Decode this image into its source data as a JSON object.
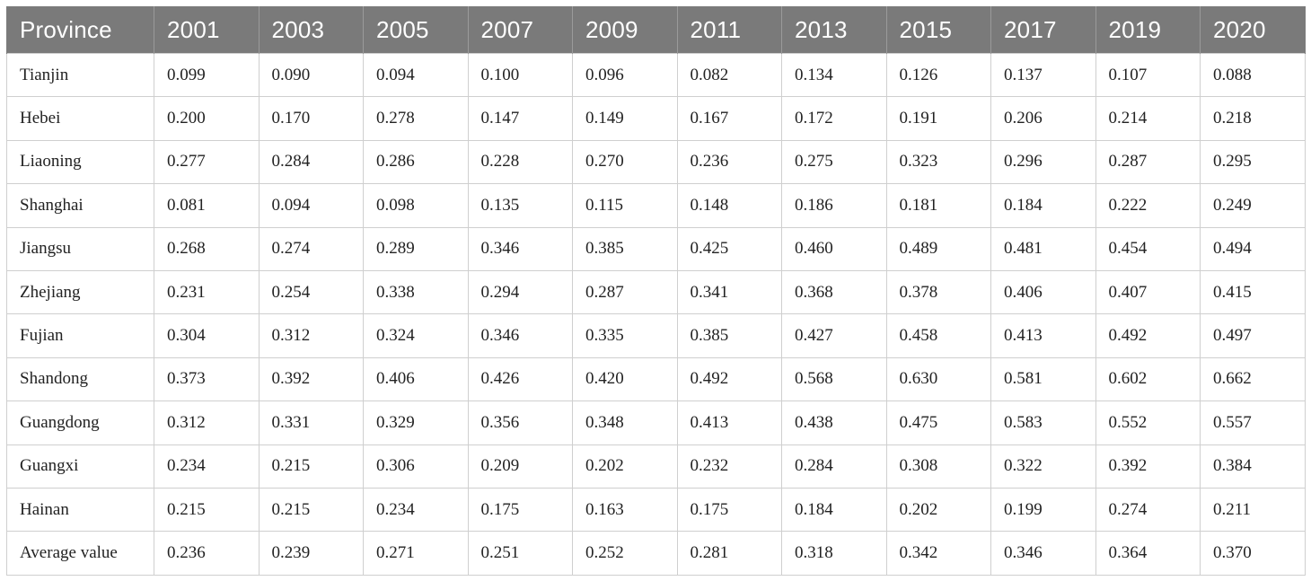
{
  "table": {
    "headers": [
      "Province",
      "2001",
      "2003",
      "2005",
      "2007",
      "2009",
      "2011",
      "2013",
      "2015",
      "2017",
      "2019",
      "2020"
    ],
    "rows": [
      [
        "Tianjin",
        "0.099",
        "0.090",
        "0.094",
        "0.100",
        "0.096",
        "0.082",
        "0.134",
        "0.126",
        "0.137",
        "0.107",
        "0.088"
      ],
      [
        "Hebei",
        "0.200",
        "0.170",
        "0.278",
        "0.147",
        "0.149",
        "0.167",
        "0.172",
        "0.191",
        "0.206",
        "0.214",
        "0.218"
      ],
      [
        "Liaoning",
        "0.277",
        "0.284",
        "0.286",
        "0.228",
        "0.270",
        "0.236",
        "0.275",
        "0.323",
        "0.296",
        "0.287",
        "0.295"
      ],
      [
        "Shanghai",
        "0.081",
        "0.094",
        "0.098",
        "0.135",
        "0.115",
        "0.148",
        "0.186",
        "0.181",
        "0.184",
        "0.222",
        "0.249"
      ],
      [
        "Jiangsu",
        "0.268",
        "0.274",
        "0.289",
        "0.346",
        "0.385",
        "0.425",
        "0.460",
        "0.489",
        "0.481",
        "0.454",
        "0.494"
      ],
      [
        "Zhejiang",
        "0.231",
        "0.254",
        "0.338",
        "0.294",
        "0.287",
        "0.341",
        "0.368",
        "0.378",
        "0.406",
        "0.407",
        "0.415"
      ],
      [
        "Fujian",
        "0.304",
        "0.312",
        "0.324",
        "0.346",
        "0.335",
        "0.385",
        "0.427",
        "0.458",
        "0.413",
        "0.492",
        "0.497"
      ],
      [
        "Shandong",
        "0.373",
        "0.392",
        "0.406",
        "0.426",
        "0.420",
        "0.492",
        "0.568",
        "0.630",
        "0.581",
        "0.602",
        "0.662"
      ],
      [
        "Guangdong",
        "0.312",
        "0.331",
        "0.329",
        "0.356",
        "0.348",
        "0.413",
        "0.438",
        "0.475",
        "0.583",
        "0.552",
        "0.557"
      ],
      [
        "Guangxi",
        "0.234",
        "0.215",
        "0.306",
        "0.209",
        "0.202",
        "0.232",
        "0.284",
        "0.308",
        "0.322",
        "0.392",
        "0.384"
      ],
      [
        "Hainan",
        "0.215",
        "0.215",
        "0.234",
        "0.175",
        "0.163",
        "0.175",
        "0.184",
        "0.202",
        "0.199",
        "0.274",
        "0.211"
      ],
      [
        "Average value",
        "0.236",
        "0.239",
        "0.271",
        "0.251",
        "0.252",
        "0.281",
        "0.318",
        "0.342",
        "0.346",
        "0.364",
        "0.370"
      ]
    ]
  },
  "colors": {
    "header_bg": "#7a7a7a",
    "header_text": "#ffffff",
    "grid": "#cfcfcf",
    "cell_text": "#222222"
  }
}
